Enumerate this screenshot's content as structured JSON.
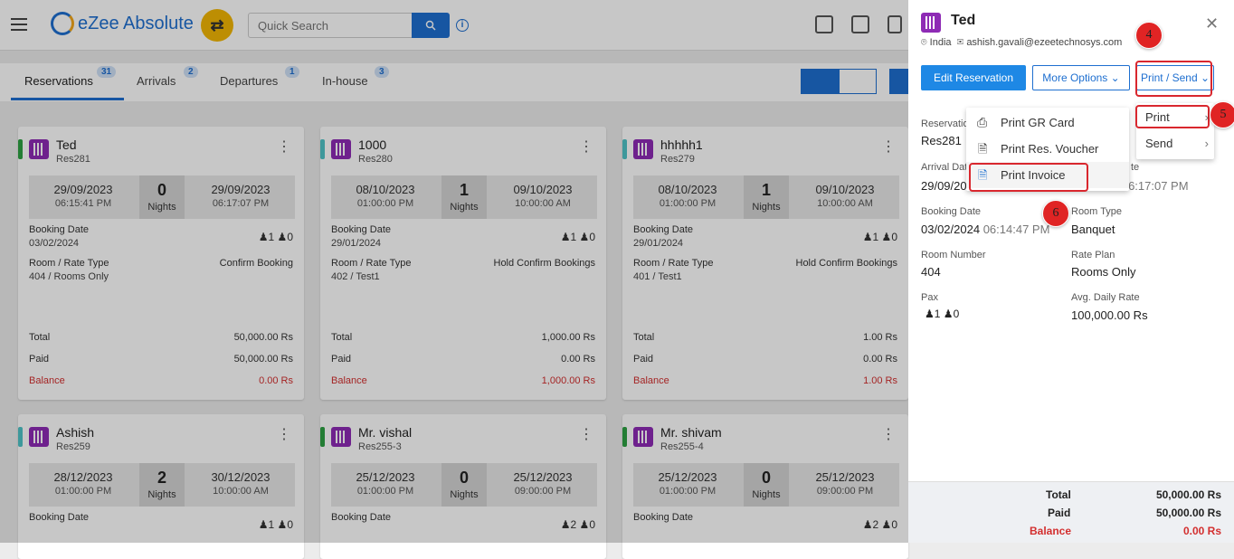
{
  "app": {
    "title": "eZee Absolute",
    "search_placeholder": "Quick Search"
  },
  "tabs": [
    {
      "label": "Reservations",
      "count": "31"
    },
    {
      "label": "Arrivals",
      "count": "2"
    },
    {
      "label": "Departures",
      "count": "1"
    },
    {
      "label": "In-house",
      "count": "3"
    }
  ],
  "labels": {
    "nights": "Nights",
    "booking_date": "Booking Date",
    "room_rate_type": "Room / Rate Type",
    "total": "Total",
    "paid": "Paid",
    "balance": "Balance"
  },
  "cards": [
    {
      "name": "Ted",
      "res": "Res281",
      "arr_date": "29/09/2023",
      "arr_time": "06:15:41 PM",
      "nights": "0",
      "dep_date": "29/09/2023",
      "dep_time": "06:17:07 PM",
      "booking_date": "03/02/2024",
      "adults": "1",
      "children": "0",
      "status": "Confirm Booking",
      "room": "404 / Rooms Only",
      "total": "50,000.00 Rs",
      "paid": "50,000.00 Rs",
      "balance": "0.00 Rs",
      "bar": "#2ea043"
    },
    {
      "name": "1000",
      "res": "Res280",
      "arr_date": "08/10/2023",
      "arr_time": "01:00:00 PM",
      "nights": "1",
      "dep_date": "09/10/2023",
      "dep_time": "10:00:00 AM",
      "booking_date": "29/01/2024",
      "adults": "1",
      "children": "0",
      "status": "Hold Confirm Bookings",
      "room": "402 / Test1",
      "total": "1,000.00 Rs",
      "paid": "0.00 Rs",
      "balance": "1,000.00 Rs",
      "bar": "#4fc3c7"
    },
    {
      "name": "hhhhh1",
      "res": "Res279",
      "arr_date": "08/10/2023",
      "arr_time": "01:00:00 PM",
      "nights": "1",
      "dep_date": "09/10/2023",
      "dep_time": "10:00:00 AM",
      "booking_date": "29/01/2024",
      "adults": "1",
      "children": "0",
      "status": "Hold Confirm Bookings",
      "room": "401 / Test1",
      "total": "1.00 Rs",
      "paid": "0.00 Rs",
      "balance": "1.00 Rs",
      "bar": "#4fc3c7"
    },
    {
      "name": "Ashish",
      "res": "Res259",
      "arr_date": "28/12/2023",
      "arr_time": "01:00:00 PM",
      "nights": "2",
      "dep_date": "30/12/2023",
      "dep_time": "10:00:00 AM",
      "booking_date": "",
      "adults": "1",
      "children": "0",
      "bar": "#4fc3c7"
    },
    {
      "name": "Mr. vishal",
      "res": "Res255-3",
      "arr_date": "25/12/2023",
      "arr_time": "01:00:00 PM",
      "nights": "0",
      "dep_date": "25/12/2023",
      "dep_time": "09:00:00 PM",
      "booking_date": "",
      "adults": "2",
      "children": "0",
      "bar": "#2ea043"
    },
    {
      "name": "Mr. shivam",
      "res": "Res255-4",
      "arr_date": "25/12/2023",
      "arr_time": "01:00:00 PM",
      "nights": "0",
      "dep_date": "25/12/2023",
      "dep_time": "09:00:00 PM",
      "booking_date": "",
      "adults": "2",
      "children": "0",
      "bar": "#2ea043"
    }
  ],
  "panel": {
    "guest_name": "Ted",
    "country": "India",
    "email": "ashish.gavali@ezeetechnosys.com",
    "edit_btn": "Edit Reservation",
    "more_btn": "More Options",
    "print_btn": "Print / Send",
    "reservation_lbl": "Reservatio",
    "reservation_val": "Res281",
    "arrival_lbl": "Arrival Dat",
    "arrival_val": "29/09/20",
    "departure_lbl": "te",
    "departure_time_frag": "3 06:17:07 PM",
    "booking_lbl": "Booking Date",
    "booking_val": "03/02/2024",
    "booking_time": "06:14:47 PM",
    "room_type_lbl": "Room Type",
    "room_type_val": "Banquet",
    "room_no_lbl": "Room Number",
    "room_no_val": "404",
    "rate_plan_lbl": "Rate Plan",
    "rate_plan_val": "Rooms Only",
    "pax_lbl": "Pax",
    "adults": "1",
    "children": "0",
    "adr_lbl": "Avg. Daily Rate",
    "adr_val": "100,000.00 Rs",
    "total_lbl": "Total",
    "total_val": "50,000.00 Rs",
    "paid_lbl": "Paid",
    "paid_val": "50,000.00 Rs",
    "balance_lbl": "Balance",
    "balance_val": "0.00 Rs"
  },
  "menus": {
    "print_send": [
      "Print",
      "Send"
    ],
    "print": [
      "Print GR Card",
      "Print Res. Voucher",
      "Print Invoice"
    ]
  },
  "annotations": [
    "4",
    "5",
    "6"
  ],
  "colors": {
    "accent": "#1e6fd0",
    "primary_button": "#1e88e5",
    "highlight": "#d9272e",
    "hotel_icon": "#8e2bb5",
    "balance_red": "#d32f2f"
  }
}
